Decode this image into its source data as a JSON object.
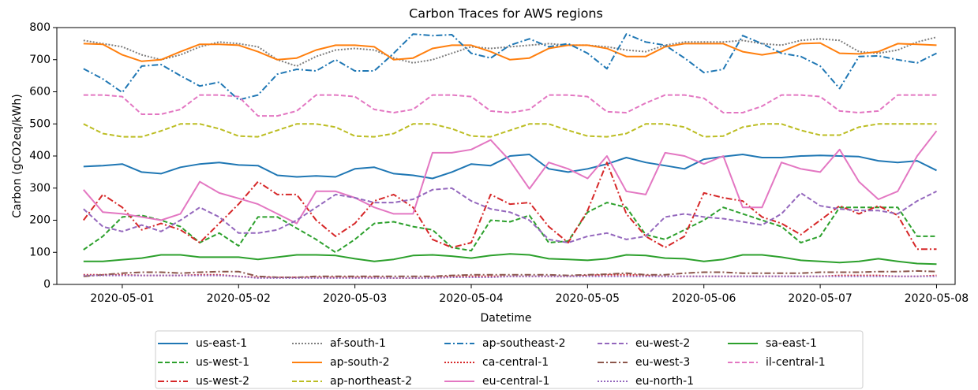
{
  "chart_data": {
    "type": "line",
    "title": "Carbon Traces for AWS regions",
    "xlabel": "Datetime",
    "ylabel": "Carbon (gCO2eq/kWh)",
    "x": [
      "2020-04-30 16:00",
      "2020-04-30 20:00",
      "2020-05-01 00:00",
      "2020-05-01 04:00",
      "2020-05-01 08:00",
      "2020-05-01 12:00",
      "2020-05-01 16:00",
      "2020-05-01 20:00",
      "2020-05-02 00:00",
      "2020-05-02 04:00",
      "2020-05-02 08:00",
      "2020-05-02 12:00",
      "2020-05-02 16:00",
      "2020-05-02 20:00",
      "2020-05-03 00:00",
      "2020-05-03 04:00",
      "2020-05-03 08:00",
      "2020-05-03 12:00",
      "2020-05-03 16:00",
      "2020-05-03 20:00",
      "2020-05-04 00:00",
      "2020-05-04 04:00",
      "2020-05-04 08:00",
      "2020-05-04 12:00",
      "2020-05-04 16:00",
      "2020-05-04 20:00",
      "2020-05-05 00:00",
      "2020-05-05 04:00",
      "2020-05-05 08:00",
      "2020-05-05 12:00",
      "2020-05-05 16:00",
      "2020-05-05 20:00",
      "2020-05-06 00:00",
      "2020-05-06 04:00",
      "2020-05-06 08:00",
      "2020-05-06 12:00",
      "2020-05-06 16:00",
      "2020-05-06 20:00",
      "2020-05-07 00:00",
      "2020-05-07 04:00",
      "2020-05-07 08:00",
      "2020-05-07 12:00",
      "2020-05-07 16:00",
      "2020-05-07 20:00",
      "2020-05-08 00:00"
    ],
    "xlim": [
      "2020-04-30 10:30",
      "2020-05-08 03:50"
    ],
    "xticks": [
      "2020-05-01",
      "2020-05-02",
      "2020-05-03",
      "2020-05-04",
      "2020-05-05",
      "2020-05-06",
      "2020-05-07",
      "2020-05-08"
    ],
    "ylim": [
      0,
      800
    ],
    "yticks": [
      0,
      100,
      200,
      300,
      400,
      500,
      600,
      700,
      800
    ],
    "grid": false,
    "legend": "lower center outside",
    "series": [
      {
        "name": "us-east-1",
        "color": "#1f77b4",
        "dash": "solid",
        "values": [
          367,
          370,
          375,
          350,
          345,
          365,
          375,
          380,
          372,
          370,
          340,
          335,
          338,
          335,
          360,
          365,
          345,
          340,
          330,
          350,
          375,
          370,
          400,
          405,
          360,
          350,
          360,
          375,
          395,
          380,
          370,
          360,
          390,
          398,
          405,
          395,
          395,
          400,
          402,
          400,
          398,
          385,
          380,
          385,
          355
        ]
      },
      {
        "name": "us-west-1",
        "color": "#2ca02c",
        "dash": "dashed",
        "values": [
          108,
          150,
          210,
          215,
          200,
          180,
          130,
          160,
          120,
          210,
          210,
          175,
          140,
          100,
          140,
          190,
          195,
          180,
          170,
          115,
          105,
          200,
          195,
          215,
          130,
          135,
          225,
          255,
          240,
          155,
          140,
          170,
          200,
          240,
          220,
          200,
          180,
          130,
          150,
          240,
          240,
          240,
          240,
          150,
          150
        ]
      },
      {
        "name": "us-west-2",
        "color": "#d62728",
        "dash": "dashdot",
        "values": [
          200,
          280,
          240,
          170,
          190,
          170,
          130,
          190,
          250,
          320,
          280,
          280,
          200,
          150,
          190,
          260,
          280,
          240,
          140,
          115,
          130,
          280,
          250,
          255,
          180,
          130,
          230,
          380,
          220,
          150,
          115,
          150,
          285,
          270,
          260,
          210,
          190,
          155,
          200,
          245,
          220,
          245,
          215,
          110,
          110
        ]
      },
      {
        "name": "af-south-1",
        "color": "#7f7f7f",
        "dash": "dotted",
        "values": [
          760,
          750,
          740,
          715,
          700,
          715,
          740,
          755,
          750,
          740,
          700,
          680,
          710,
          730,
          735,
          730,
          705,
          690,
          700,
          720,
          740,
          735,
          740,
          745,
          750,
          745,
          745,
          740,
          730,
          725,
          745,
          755,
          755,
          755,
          760,
          750,
          745,
          760,
          765,
          760,
          725,
          720,
          730,
          755,
          770
        ]
      },
      {
        "name": "ap-south-2",
        "color": "#ff7f0e",
        "dash": "solid",
        "values": [
          750,
          748,
          715,
          695,
          700,
          725,
          748,
          748,
          745,
          725,
          700,
          705,
          730,
          745,
          745,
          740,
          700,
          705,
          735,
          745,
          745,
          725,
          700,
          705,
          735,
          745,
          745,
          735,
          710,
          710,
          740,
          750,
          750,
          750,
          725,
          715,
          725,
          750,
          752,
          720,
          718,
          725,
          750,
          748,
          745
        ]
      },
      {
        "name": "ap-northeast-2",
        "color": "#bcbd22",
        "dash": "dashed",
        "values": [
          500,
          470,
          460,
          460,
          478,
          500,
          500,
          485,
          462,
          460,
          480,
          500,
          500,
          490,
          462,
          460,
          470,
          500,
          500,
          485,
          462,
          460,
          480,
          500,
          500,
          480,
          462,
          460,
          470,
          500,
          500,
          490,
          460,
          462,
          490,
          500,
          500,
          480,
          465,
          465,
          490,
          500,
          500,
          500,
          500
        ]
      },
      {
        "name": "ap-southeast-2",
        "color": "#1f77b4",
        "dash": "dashdot",
        "values": [
          672,
          640,
          598,
          680,
          685,
          650,
          618,
          630,
          575,
          590,
          655,
          670,
          665,
          700,
          665,
          665,
          720,
          780,
          775,
          778,
          720,
          705,
          745,
          765,
          740,
          750,
          720,
          672,
          780,
          755,
          745,
          705,
          660,
          670,
          775,
          750,
          720,
          710,
          680,
          610,
          710,
          712,
          700,
          690,
          720
        ]
      },
      {
        "name": "ca-central-1",
        "color": "#d62728",
        "dash": "dotted",
        "values": [
          30,
          30,
          30,
          28,
          28,
          28,
          30,
          30,
          25,
          22,
          22,
          22,
          22,
          22,
          22,
          22,
          20,
          20,
          22,
          25,
          25,
          25,
          25,
          25,
          25,
          25,
          28,
          30,
          30,
          28,
          25,
          25,
          25,
          25,
          25,
          25,
          25,
          25,
          25,
          28,
          28,
          28,
          25,
          25,
          28
        ]
      },
      {
        "name": "eu-central-1",
        "color": "#e377c2",
        "dash": "solid",
        "values": [
          295,
          225,
          220,
          210,
          200,
          220,
          320,
          285,
          268,
          250,
          220,
          190,
          290,
          290,
          270,
          240,
          220,
          220,
          410,
          410,
          420,
          450,
          385,
          298,
          380,
          360,
          330,
          400,
          290,
          280,
          410,
          400,
          375,
          400,
          240,
          240,
          380,
          360,
          350,
          420,
          320,
          265,
          290,
          400,
          478
        ]
      },
      {
        "name": "eu-west-2",
        "color": "#9467bd",
        "dash": "dashed",
        "values": [
          235,
          180,
          165,
          185,
          165,
          200,
          240,
          210,
          160,
          160,
          170,
          200,
          240,
          280,
          270,
          255,
          255,
          265,
          295,
          300,
          260,
          235,
          225,
          200,
          140,
          130,
          150,
          160,
          140,
          150,
          210,
          220,
          210,
          205,
          195,
          185,
          220,
          285,
          245,
          235,
          230,
          230,
          220,
          260,
          290
        ]
      },
      {
        "name": "eu-west-3",
        "color": "#8c564b",
        "dash": "dashdot",
        "values": [
          25,
          30,
          35,
          38,
          38,
          35,
          38,
          40,
          40,
          25,
          22,
          22,
          25,
          25,
          25,
          25,
          25,
          25,
          25,
          28,
          30,
          30,
          30,
          30,
          30,
          28,
          30,
          32,
          35,
          30,
          30,
          35,
          38,
          38,
          35,
          35,
          35,
          35,
          38,
          38,
          38,
          40,
          40,
          42,
          40
        ]
      },
      {
        "name": "eu-north-1",
        "color": "#9467bd",
        "dash": "dotted",
        "values": [
          28,
          28,
          28,
          28,
          28,
          28,
          28,
          28,
          25,
          20,
          20,
          20,
          20,
          20,
          20,
          20,
          20,
          20,
          20,
          22,
          22,
          22,
          25,
          25,
          25,
          25,
          25,
          25,
          25,
          25,
          25,
          25,
          25,
          25,
          25,
          25,
          25,
          25,
          25,
          25,
          25,
          25,
          25,
          25,
          25
        ]
      },
      {
        "name": "sa-east-1",
        "color": "#2ca02c",
        "dash": "solid",
        "values": [
          72,
          72,
          77,
          82,
          92,
          92,
          85,
          85,
          85,
          78,
          85,
          92,
          92,
          90,
          80,
          72,
          78,
          90,
          92,
          88,
          82,
          90,
          95,
          92,
          80,
          78,
          75,
          80,
          92,
          90,
          82,
          80,
          72,
          78,
          92,
          92,
          85,
          75,
          72,
          68,
          72,
          80,
          72,
          65,
          63
        ]
      },
      {
        "name": "il-central-1",
        "color": "#e377c2",
        "dash": "dashed",
        "values": [
          590,
          590,
          585,
          530,
          530,
          545,
          590,
          590,
          585,
          525,
          525,
          540,
          590,
          590,
          585,
          545,
          535,
          545,
          590,
          590,
          585,
          540,
          535,
          545,
          590,
          590,
          585,
          538,
          535,
          565,
          590,
          590,
          580,
          535,
          535,
          555,
          590,
          590,
          585,
          540,
          535,
          540,
          590,
          590,
          590
        ]
      }
    ]
  }
}
